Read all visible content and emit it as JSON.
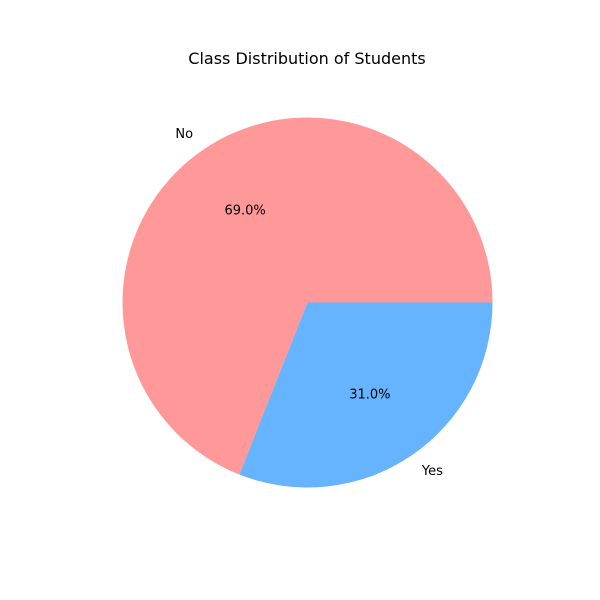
{
  "chart_data": {
    "type": "pie",
    "title": "Class Distribution of Students",
    "categories": [
      "No",
      "Yes"
    ],
    "values": [
      69.0,
      31.0
    ],
    "percent_labels": [
      "69.0%",
      "31.0%"
    ],
    "colors": [
      "#ff9999",
      "#66b3ff"
    ],
    "start_angle_deg": 0,
    "direction": "counterclockwise",
    "legend": "none"
  }
}
